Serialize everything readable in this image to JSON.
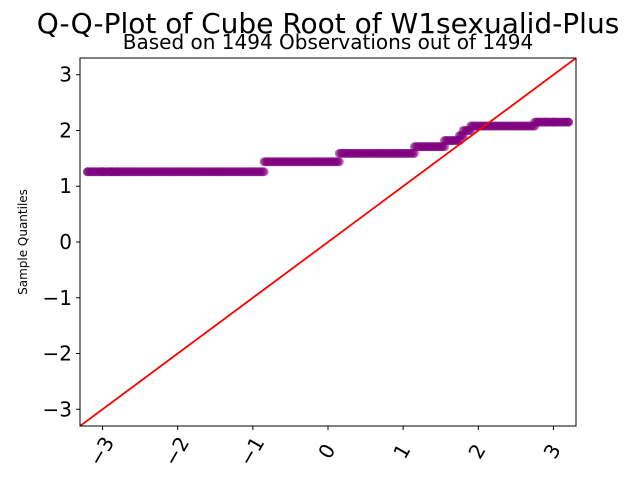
{
  "chart_data": {
    "type": "scatter",
    "title": "Q-Q-Plot of Cube Root of W1sexualid-Plus",
    "subtitle": "Based on 1494 Observations out of 1494",
    "xlabel": "",
    "ylabel": "Sample Quantiles",
    "xlim": [
      -3.3,
      3.3
    ],
    "ylim": [
      -3.3,
      3.3
    ],
    "xticks": [
      -3,
      -2,
      -1,
      0,
      1,
      2,
      3
    ],
    "yticks": [
      -3,
      -2,
      -1,
      0,
      1,
      2,
      3
    ],
    "xtick_labels": [
      "−3",
      "−2",
      "−1",
      "0",
      "1",
      "2",
      "3"
    ],
    "ytick_labels": [
      "−3",
      "−2",
      "−1",
      "0",
      "1",
      "2",
      "3"
    ],
    "grid": false,
    "marker_color": "#800080",
    "marker_alpha": 0.55,
    "reference_line": {
      "x": [
        -3.3,
        3.3
      ],
      "y": [
        -3.3,
        3.3
      ],
      "color": "#ff0000"
    },
    "steps": [
      {
        "y": 1.26,
        "x_start": -3.2,
        "x_end": -0.85
      },
      {
        "y": 1.44,
        "x_start": -0.85,
        "x_end": 0.15
      },
      {
        "y": 1.59,
        "x_start": 0.15,
        "x_end": 1.15
      },
      {
        "y": 1.71,
        "x_start": 1.15,
        "x_end": 1.55
      },
      {
        "y": 1.82,
        "x_start": 1.55,
        "x_end": 1.75
      },
      {
        "y": 1.91,
        "x_start": 1.75,
        "x_end": 1.8
      },
      {
        "y": 2.0,
        "x_start": 1.8,
        "x_end": 1.9
      },
      {
        "y": 2.08,
        "x_start": 1.9,
        "x_end": 2.75
      },
      {
        "y": 2.15,
        "x_start": 2.75,
        "x_end": 3.2
      }
    ],
    "sparse_points": [
      {
        "x": -3.2,
        "y": 1.26
      },
      {
        "x": -3.0,
        "y": 1.26
      },
      {
        "x": -2.88,
        "y": 1.26
      },
      {
        "x": -2.8,
        "y": 1.26
      },
      {
        "x": 2.8,
        "y": 2.15
      },
      {
        "x": 2.9,
        "y": 2.15
      },
      {
        "x": 3.0,
        "y": 2.15
      },
      {
        "x": 3.2,
        "y": 2.15
      }
    ]
  }
}
